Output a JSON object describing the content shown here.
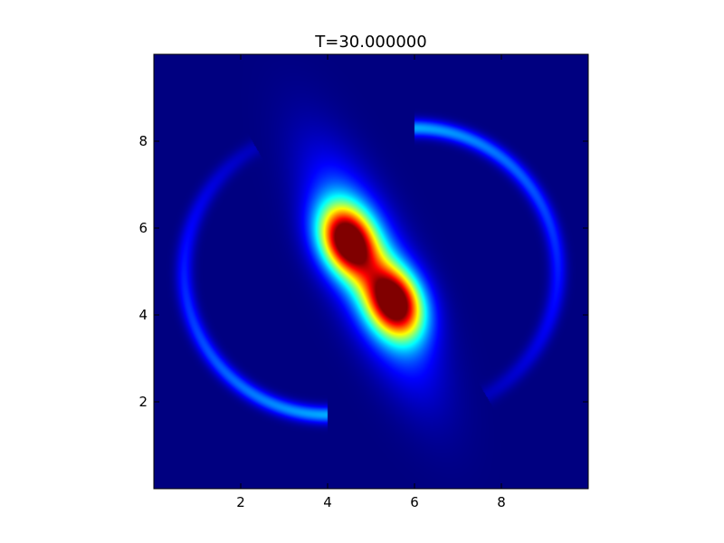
{
  "chart_data": {
    "type": "heatmap",
    "title": "T=30.000000",
    "xlabel": "",
    "ylabel": "",
    "xlim": [
      0,
      10
    ],
    "ylim": [
      0,
      10
    ],
    "x_ticks": [
      2,
      4,
      6,
      8
    ],
    "y_ticks": [
      2,
      4,
      6,
      8
    ],
    "x_tick_labels": [
      "2",
      "4",
      "6",
      "8"
    ],
    "y_tick_labels": [
      "2",
      "4",
      "6",
      "8"
    ],
    "colormap": "jet",
    "value_range": [
      0,
      1
    ],
    "background_value": 0,
    "grid": false,
    "legend": "none",
    "features": [
      {
        "type": "blob",
        "x": 4.45,
        "y": 5.7,
        "sx": 0.42,
        "sy": 0.58,
        "angle": 25,
        "amp": 1.0
      },
      {
        "type": "blob",
        "x": 5.55,
        "y": 4.3,
        "sx": 0.42,
        "sy": 0.58,
        "angle": 25,
        "amp": 1.0
      },
      {
        "type": "blob",
        "x": 5.0,
        "y": 5.0,
        "sx": 0.55,
        "sy": 1.75,
        "angle": 24,
        "amp": 0.42
      },
      {
        "type": "spiral_arm",
        "center": [
          4.0,
          5.0
        ],
        "radius": 3.3,
        "start_deg": 270,
        "end_deg": 120,
        "width": 0.14,
        "amp_start": 0.32,
        "amp_end": 0.06
      },
      {
        "type": "spiral_arm",
        "center": [
          6.0,
          5.0
        ],
        "radius": 3.3,
        "start_deg": 90,
        "end_deg": -60,
        "width": 0.14,
        "amp_start": 0.32,
        "amp_end": 0.06
      }
    ]
  }
}
